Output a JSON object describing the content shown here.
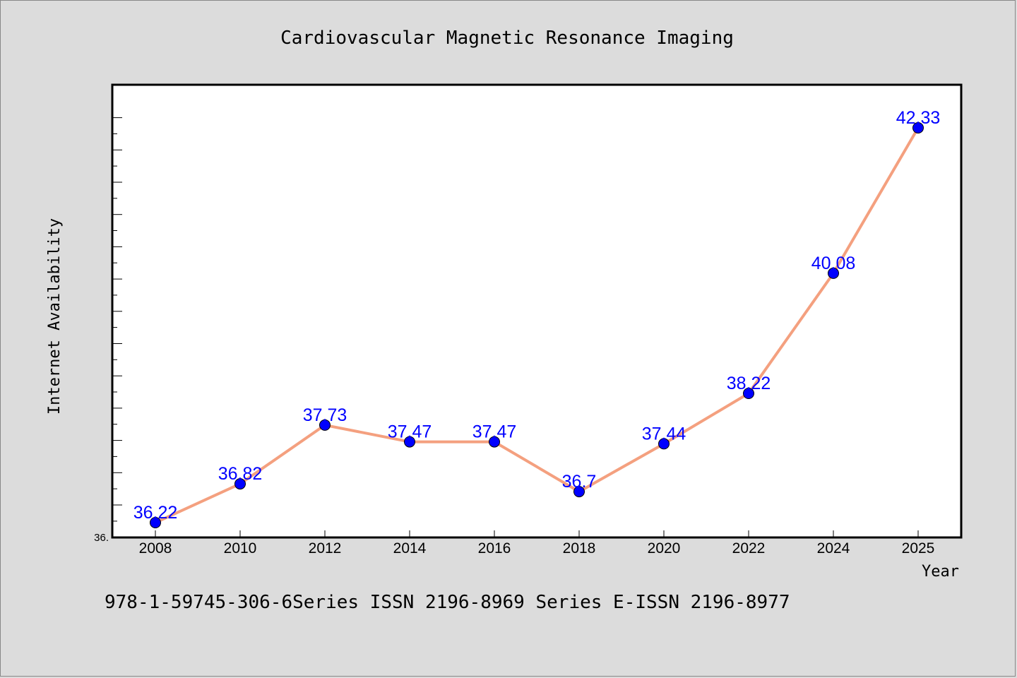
{
  "chart_data": {
    "type": "line",
    "title": "Cardiovascular Magnetic Resonance Imaging",
    "xlabel": "Year",
    "ylabel": "Internet Availability",
    "categories": [
      "2008",
      "2010",
      "2012",
      "2014",
      "2016",
      "2018",
      "2020",
      "2022",
      "2024",
      "2025"
    ],
    "series": [
      {
        "values": [
          36.22,
          36.82,
          37.73,
          37.47,
          37.47,
          36.7,
          37.44,
          38.22,
          40.08,
          42.33
        ],
        "labels": [
          "36.22",
          "36.82",
          "37.73",
          "37.47",
          "37.47",
          "36.7",
          "37.44",
          "38.22",
          "40.08",
          "42.33"
        ]
      }
    ],
    "y_axis_min_label": "36.",
    "ylim": [
      36.0,
      43.0
    ],
    "grid": false,
    "legend": "none",
    "colors": {
      "line": "#f4a07f",
      "marker": "#0000ff",
      "data_label": "#0000ff",
      "plot_background": "#ffffff",
      "figure_background": "#dcdcdc"
    }
  },
  "footer": {
    "text": "978-1-59745-306-6Series ISSN 2196-8969 Series E-ISSN 2196-8977"
  }
}
